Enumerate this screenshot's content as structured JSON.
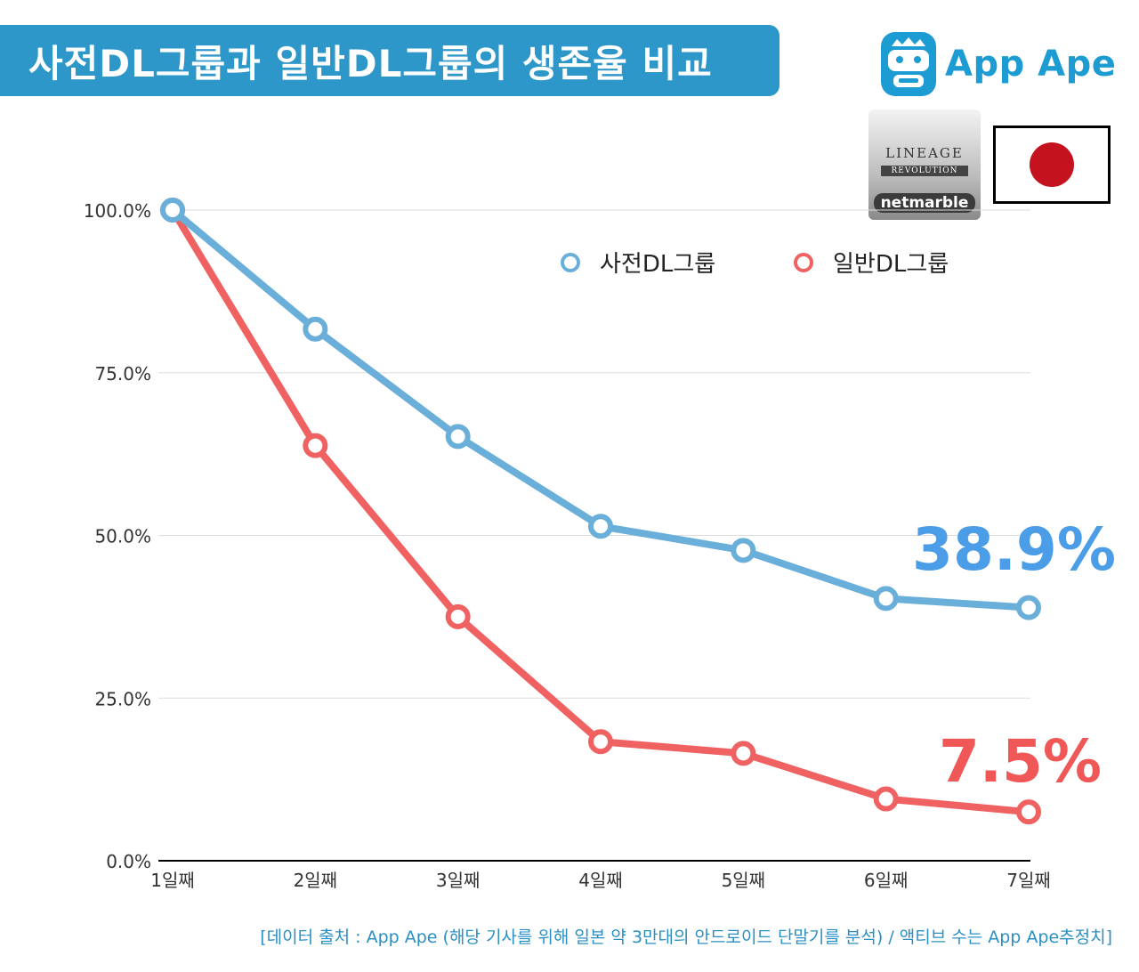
{
  "header": {
    "title": "사전DL그룹과 일반DL그룹의 생존율 비교",
    "brand_name": "App Ape"
  },
  "game_logo": {
    "line1": "LINEAGE",
    "line2": "REVOLUTION",
    "publisher": "netmarble"
  },
  "colors": {
    "accent": "#2e97c9",
    "pre_dl": "#69afd9",
    "normal_dl": "#f06262",
    "pre_dl_label": "#4a9de6",
    "normal_dl_label": "#f05757"
  },
  "chart_data": {
    "type": "line",
    "title": "사전DL그룹과 일반DL그룹의 생존율 비교",
    "categories": [
      "1일째",
      "2일째",
      "3일째",
      "4일째",
      "5일째",
      "6일째",
      "7일째"
    ],
    "yticks": [
      "0.0%",
      "25.0%",
      "50.0%",
      "75.0%",
      "100.0%"
    ],
    "ylim": [
      0,
      100
    ],
    "xlabel": "",
    "ylabel": "",
    "legend_position": "top-right",
    "series": [
      {
        "name": "사전DL그룹",
        "values": [
          100,
          81.7,
          65.2,
          51.4,
          47.7,
          40.3,
          38.9
        ],
        "end_label": "38.9%"
      },
      {
        "name": "일반DL그룹",
        "values": [
          100,
          63.8,
          37.5,
          18.3,
          16.5,
          9.5,
          7.5
        ],
        "end_label": "7.5%"
      }
    ]
  },
  "source": "[데이터 출처 : App Ape (해당 기사를 위해 일본 약 3만대의 안드로이드 단말기를 분석) / 액티브 수는 App Ape추정치]"
}
